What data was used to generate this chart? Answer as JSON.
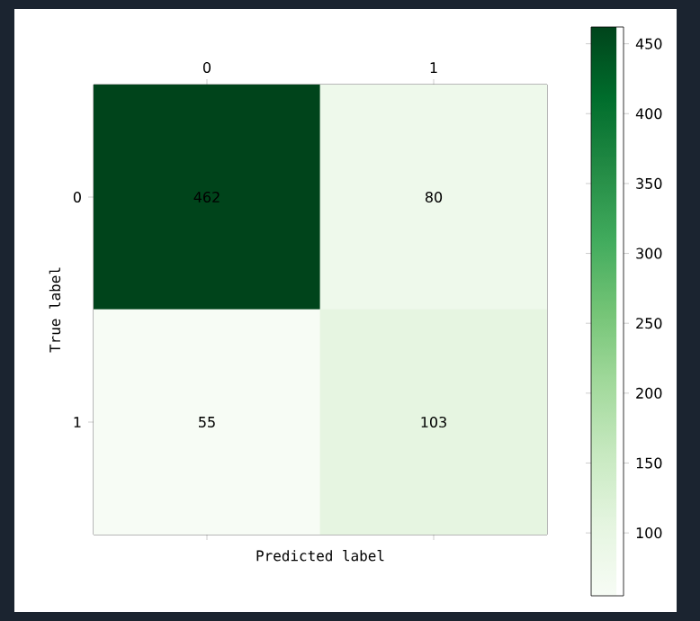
{
  "chart_data": {
    "type": "heatmap",
    "categories": [
      "0",
      "1"
    ],
    "y_categories": [
      "0",
      "1"
    ],
    "cells": [
      [
        462,
        80
      ],
      [
        55,
        103
      ]
    ],
    "data_labels": true,
    "xlabel": "Predicted label",
    "ylabel": "True label",
    "clim": [
      55,
      462
    ],
    "cticks": [
      100,
      150,
      200,
      250,
      300,
      350,
      400,
      450
    ]
  }
}
